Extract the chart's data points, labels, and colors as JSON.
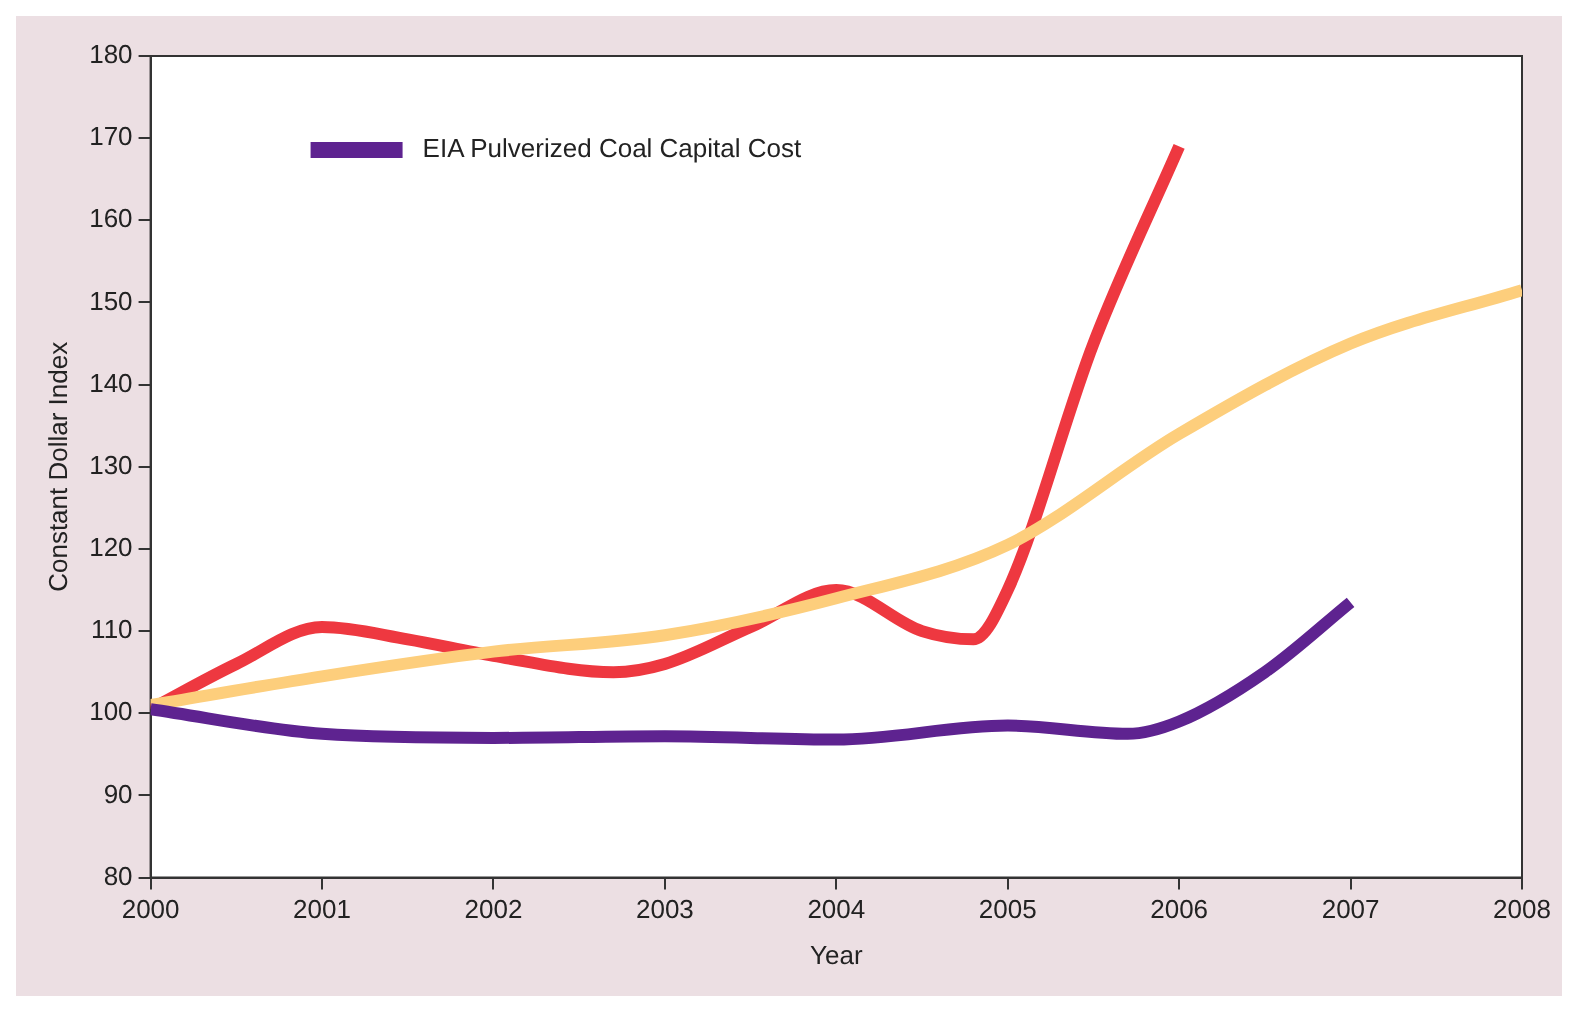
{
  "chart_data": {
    "type": "line",
    "xlabel": "Year",
    "ylabel": "Constant Dollar Index",
    "xlim": [
      2000,
      2008
    ],
    "xticks": [
      2000,
      2001,
      2002,
      2003,
      2004,
      2005,
      2006,
      2007,
      2008
    ],
    "ylim": [
      80,
      180
    ],
    "yticks": [
      80,
      90,
      100,
      110,
      120,
      130,
      140,
      150,
      160,
      170,
      180
    ],
    "grid": false,
    "legend": "top left",
    "marker": "none",
    "line_style": "solid",
    "series": [
      {
        "name": "EIA Pulverized Coal Capital Cost",
        "color": "#5e2390",
        "x": [
          2000,
          2001,
          2002,
          2003,
          2004,
          2005,
          2005.7,
          2006,
          2006.5,
          2007
        ],
        "values": [
          100.5,
          97.5,
          97,
          97.2,
          96.8,
          98.5,
          97.5,
          99,
          105,
          113.5
        ]
      },
      {
        "color": "#fdce7c",
        "x": [
          2000,
          2001,
          2002,
          2003,
          2004,
          2005,
          2006,
          2007,
          2008
        ],
        "values": [
          101,
          104.5,
          107.5,
          109.5,
          114,
          120.5,
          134,
          145,
          151.5
        ]
      },
      {
        "color": "#ee3840",
        "x": [
          2000,
          2000.5,
          2001,
          2001.5,
          2002,
          2002.7,
          2003,
          2003.5,
          2004,
          2004.5,
          2004.8,
          2005,
          2005.5,
          2006
        ],
        "values": [
          100.5,
          106,
          110.5,
          109,
          107,
          105,
          106,
          110.5,
          115,
          110,
          109,
          115,
          145,
          169
        ]
      }
    ]
  }
}
